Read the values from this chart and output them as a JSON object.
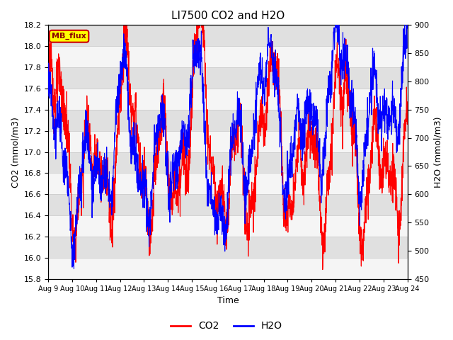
{
  "title": "LI7500 CO2 and H2O",
  "xlabel": "Time",
  "ylabel_left": "CO2 (mmol/m3)",
  "ylabel_right": "H2O (mmol/m3)",
  "co2_color": "#FF0000",
  "h2o_color": "#0000FF",
  "co2_ylim": [
    15.8,
    18.2
  ],
  "h2o_ylim": [
    450,
    900
  ],
  "x_tick_labels": [
    "Aug 9",
    "Aug 10",
    "Aug 11",
    "Aug 12",
    "Aug 13",
    "Aug 14",
    "Aug 15",
    "Aug 16",
    "Aug 17",
    "Aug 18",
    "Aug 19",
    "Aug 20",
    "Aug 21",
    "Aug 22",
    "Aug 23",
    "Aug 24"
  ],
  "legend_loc": "lower center",
  "annotation_text": "MB_flux",
  "annotation_bg": "#FFFF00",
  "annotation_border": "#CC0000",
  "annotation_text_color": "#8B0000",
  "grid_color": "#CCCCCC",
  "background_color": "#EBEBEB",
  "band_color_light": "#F5F5F5",
  "band_color_dark": "#E0E0E0",
  "linewidth": 0.8,
  "seed": 123,
  "figsize": [
    6.4,
    4.8
  ],
  "dpi": 100
}
